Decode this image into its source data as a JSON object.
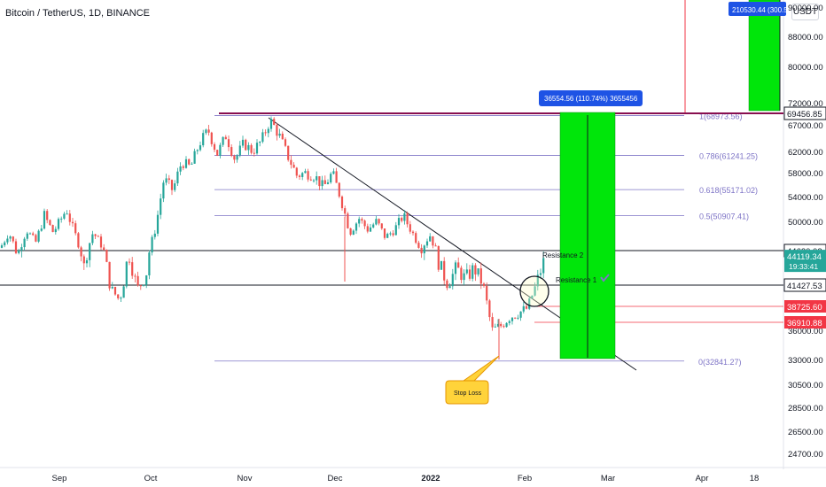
{
  "header": {
    "title": "Bitcoin / TetherUS, 1D, BINANCE",
    "currency": "USDT"
  },
  "chart_data": {
    "type": "candlestick",
    "x_ticks": [
      "Sep",
      "Oct",
      "Nov",
      "Dec",
      "2022",
      "Feb",
      "Mar",
      "Apr",
      "18"
    ],
    "y_ticks": [
      90000,
      88000,
      80000,
      72000,
      67000,
      62000,
      58000,
      54000,
      50000,
      44620.02,
      41427.53,
      38725.6,
      36910.88,
      36000,
      33000,
      30500,
      28500,
      26500,
      24700
    ],
    "series_path": [
      [
        0,
        45000
      ],
      [
        10,
        48000
      ],
      [
        20,
        44000
      ],
      [
        30,
        48500
      ],
      [
        40,
        46000
      ],
      [
        50,
        51000
      ],
      [
        60,
        48000
      ],
      [
        75,
        52000
      ],
      [
        85,
        47500
      ],
      [
        95,
        43000
      ],
      [
        105,
        48000
      ],
      [
        115,
        45500
      ],
      [
        125,
        41000
      ],
      [
        135,
        39500
      ],
      [
        145,
        44500
      ],
      [
        155,
        41000
      ],
      [
        165,
        42500
      ],
      [
        175,
        48500
      ],
      [
        185,
        57000
      ],
      [
        195,
        55000
      ],
      [
        205,
        60000
      ],
      [
        215,
        59000
      ],
      [
        225,
        63500
      ],
      [
        235,
        66000
      ],
      [
        245,
        61500
      ],
      [
        255,
        65000
      ],
      [
        265,
        60500
      ],
      [
        275,
        63500
      ],
      [
        285,
        62000
      ],
      [
        295,
        64000
      ],
      [
        305,
        68000
      ],
      [
        315,
        65000
      ],
      [
        325,
        61000
      ],
      [
        335,
        57500
      ],
      [
        345,
        58000
      ],
      [
        355,
        57500
      ],
      [
        365,
        55500
      ],
      [
        375,
        58000
      ],
      [
        385,
        53500
      ],
      [
        395,
        48000
      ],
      [
        405,
        50500
      ],
      [
        415,
        48500
      ],
      [
        425,
        50000
      ],
      [
        435,
        47000
      ],
      [
        445,
        48500
      ],
      [
        455,
        51000
      ],
      [
        465,
        48000
      ],
      [
        475,
        45000
      ],
      [
        485,
        47500
      ],
      [
        495,
        43500
      ],
      [
        505,
        41500
      ],
      [
        515,
        43000
      ],
      [
        525,
        42000
      ],
      [
        535,
        43000
      ],
      [
        545,
        41500
      ],
      [
        555,
        36000
      ],
      [
        565,
        36500
      ],
      [
        575,
        37500
      ],
      [
        585,
        38000
      ],
      [
        595,
        38500
      ],
      [
        605,
        41500
      ],
      [
        615,
        44000
      ]
    ],
    "candle_seed": 7,
    "horizontal_lines": [
      {
        "label": "44620.02",
        "value": 44620.02,
        "color": "#131722"
      },
      {
        "label": "41427.53",
        "value": 41427.53,
        "color": "#131722"
      },
      {
        "label": "38725.60",
        "value": 38725.6,
        "color": "#f23645"
      },
      {
        "label": "36910.88",
        "value": 36910.88,
        "color": "#f23645"
      },
      {
        "label": "69456.85",
        "value": 69456.85,
        "color": "#131722"
      }
    ],
    "last_price": {
      "value": "44119.34",
      "countdown": "19:33:41"
    },
    "fibonacci": {
      "levels": [
        {
          "ratio": "1",
          "label": "1(68973.56)",
          "value": 68973.56
        },
        {
          "ratio": "0.786",
          "label": "0.786(61241.25)",
          "value": 61241.25
        },
        {
          "ratio": "0.618",
          "label": "0.618(55171.02)",
          "value": 55171.02
        },
        {
          "ratio": "0.5",
          "label": "0.5(50907.41)",
          "value": 50907.41
        },
        {
          "ratio": "0",
          "label": "0(32841.27)",
          "value": 32841.27
        }
      ],
      "color": "#7e74c6"
    },
    "annotations": {
      "resistance_2": "Resistance 2",
      "resistance_1": "Resistance 1",
      "stop_loss": "Stop Loss",
      "target_box_label": "36554.56 (110.74%) 3655456",
      "top_box_label": "210530.44 (300.5"
    },
    "colors": {
      "up": "#26a69a",
      "down": "#ef5350",
      "target": "#00e60a",
      "label_blue": "#1e53e5",
      "callout": "#ffd33a"
    }
  }
}
